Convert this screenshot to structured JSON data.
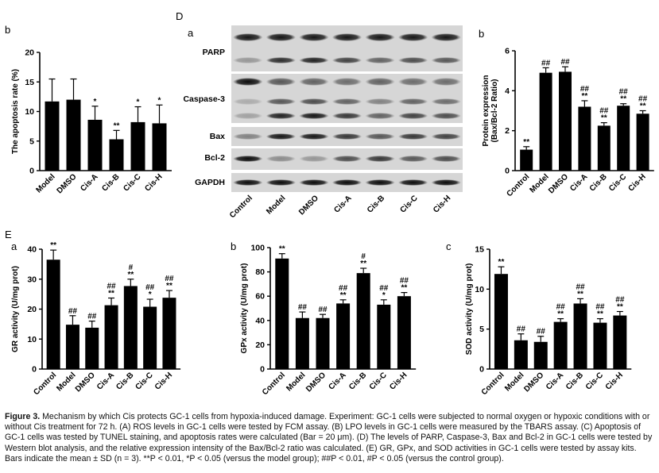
{
  "panel_letters": {
    "Db": "b",
    "D": "D",
    "Da": "a",
    "Dbb": "b",
    "E": "E",
    "Ea": "a",
    "Eb": "b",
    "Ec": "c"
  },
  "blot": {
    "labels": [
      "PARP",
      "Caspase-3",
      "Bax",
      "Bcl-2",
      "GAPDH"
    ],
    "lanes": [
      "Control",
      "Model",
      "DMSO",
      "Cis-A",
      "Cis-B",
      "Cis-C",
      "Cis-H"
    ]
  },
  "caption": {
    "head": "Figure 3.",
    "body": " Mechanism by which Cis protects GC-1 cells from hypoxia-induced damage. Experiment: GC-1 cells were subjected to normal oxygen or hypoxic conditions with or without Cis treatment for 72 h. (A) ROS levels in GC-1 cells were tested by FCM assay. (B) LPO levels in GC-1 cells were measured by the TBARS assay. (C) Apoptosis of GC-1 cells was tested by TUNEL staining, and apoptosis rates were calculated (Bar = 20 μm). (D) The levels of PARP, Caspase-3, Bax and Bcl-2 in GC-1 cells were tested by Western blot analysis, and the relative expression intensity of the Bax/Bcl-2 ratio was calculated. (E) GR, GPx, and SOD activities in GC-1 cells were tested by assay kits. Bars indicate the mean ± SD (n = 3). **P < 0.01, *P < 0.05 (versus the model group); ##P < 0.01, #P < 0.05 (versus the control group)."
  },
  "chart_data": [
    {
      "id": "apoptosis",
      "type": "bar",
      "ylabel": "The apoptosis rate (%)",
      "categories": [
        "Model",
        "DMSO",
        "Cis-A",
        "Cis-B",
        "Cis-C",
        "Cis-H"
      ],
      "values": [
        11.7,
        12.0,
        8.6,
        5.3,
        8.2,
        8.0
      ],
      "errors": [
        3.8,
        3.5,
        2.3,
        1.5,
        2.6,
        3.1
      ],
      "annotations": [
        "",
        "",
        "*",
        "**",
        "*",
        "*"
      ],
      "ylim": [
        0,
        20
      ],
      "yticks": [
        0,
        5,
        10,
        15,
        20
      ]
    },
    {
      "id": "baxbcl2",
      "type": "bar",
      "ylabel": "Protein expression (Bax/Bcl-2 Ratio)",
      "categories": [
        "Control",
        "Model",
        "DMSO",
        "Cis-A",
        "Cis-B",
        "Cis-C",
        "Cis-H"
      ],
      "values": [
        1.05,
        4.9,
        4.95,
        3.2,
        2.25,
        3.25,
        2.85
      ],
      "errors": [
        0.15,
        0.25,
        0.25,
        0.3,
        0.15,
        0.1,
        0.15
      ],
      "annotations": [
        "**",
        "##",
        "##",
        "##\n**",
        "##\n**",
        "##\n**",
        "##\n**"
      ],
      "ylim": [
        0,
        6
      ],
      "yticks": [
        0,
        2,
        4,
        6
      ]
    },
    {
      "id": "gr",
      "type": "bar",
      "ylabel": "GR activity (U/mg prot)",
      "categories": [
        "Control",
        "Model",
        "DMSO",
        "Cis-A",
        "Cis-B",
        "Cis-C",
        "Cis-H"
      ],
      "values": [
        36.5,
        14.8,
        13.8,
        21.3,
        27.7,
        20.8,
        23.8
      ],
      "errors": [
        3.2,
        3.0,
        2.2,
        2.4,
        2.3,
        2.5,
        2.4
      ],
      "annotations": [
        "**",
        "##",
        "##",
        "##\n**",
        "#\n**",
        "##\n*",
        "##\n**"
      ],
      "ylim": [
        0,
        40
      ],
      "yticks": [
        0,
        10,
        20,
        30,
        40
      ]
    },
    {
      "id": "gpx",
      "type": "bar",
      "ylabel": "GPx activity (U/mg prot)",
      "categories": [
        "Control",
        "Model",
        "DMSO",
        "Cis-A",
        "Cis-B",
        "Cis-C",
        "Cis-H"
      ],
      "values": [
        91,
        42,
        42,
        54,
        79,
        53,
        60
      ],
      "errors": [
        4,
        5,
        3,
        3,
        4,
        4,
        3
      ],
      "annotations": [
        "**",
        "##",
        "##",
        "##\n**",
        "#\n**",
        "##\n*",
        "##\n**"
      ],
      "ylim": [
        0,
        100
      ],
      "yticks": [
        0,
        20,
        40,
        60,
        80,
        100
      ]
    },
    {
      "id": "sod",
      "type": "bar",
      "ylabel": "SOD activity (U/mg prot)",
      "categories": [
        "Control",
        "Model",
        "DMSO",
        "Cis-A",
        "Cis-B",
        "Cis-C",
        "Cis-H"
      ],
      "values": [
        11.9,
        3.6,
        3.4,
        5.9,
        8.2,
        5.8,
        6.7
      ],
      "errors": [
        0.9,
        0.8,
        0.7,
        0.4,
        0.6,
        0.5,
        0.5
      ],
      "annotations": [
        "**",
        "##",
        "##",
        "##\n**",
        "##\n**",
        "##\n**",
        "##\n**"
      ],
      "ylim": [
        0,
        15
      ],
      "yticks": [
        0,
        5,
        10,
        15
      ]
    }
  ]
}
